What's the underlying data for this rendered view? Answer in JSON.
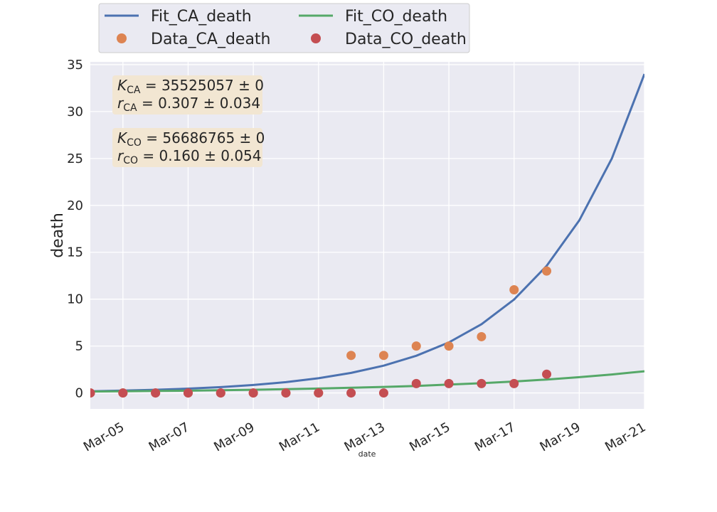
{
  "chart_data": {
    "type": "line",
    "xlabel": "date",
    "ylabel": "death",
    "x_range": [
      "2020-03-04",
      "2020-03-21"
    ],
    "ylim": [
      -1.7,
      35.3
    ],
    "grid": true,
    "legend_placement": "top, above plot, 2 columns",
    "x_ticks": [
      {
        "date": "2020-03-05",
        "label": "Mar-05"
      },
      {
        "date": "2020-03-07",
        "label": "Mar-07"
      },
      {
        "date": "2020-03-09",
        "label": "Mar-09"
      },
      {
        "date": "2020-03-11",
        "label": "Mar-11"
      },
      {
        "date": "2020-03-13",
        "label": "Mar-13"
      },
      {
        "date": "2020-03-15",
        "label": "Mar-15"
      },
      {
        "date": "2020-03-17",
        "label": "Mar-17"
      },
      {
        "date": "2020-03-19",
        "label": "Mar-19"
      },
      {
        "date": "2020-03-21",
        "label": "Mar-21"
      }
    ],
    "y_ticks": [
      0,
      5,
      10,
      15,
      20,
      25,
      30,
      35
    ],
    "series": [
      {
        "name": "Fit_CA_death",
        "kind": "line",
        "color": "#4c72b0",
        "points": [
          [
            "2020-03-04",
            0.18
          ],
          [
            "2020-03-05",
            0.25
          ],
          [
            "2020-03-06",
            0.34
          ],
          [
            "2020-03-07",
            0.46
          ],
          [
            "2020-03-08",
            0.62
          ],
          [
            "2020-03-09",
            0.85
          ],
          [
            "2020-03-10",
            1.15
          ],
          [
            "2020-03-11",
            1.57
          ],
          [
            "2020-03-12",
            2.14
          ],
          [
            "2020-03-13",
            2.91
          ],
          [
            "2020-03-14",
            3.96
          ],
          [
            "2020-03-15",
            5.39
          ],
          [
            "2020-03-16",
            7.33
          ],
          [
            "2020-03-17",
            9.96
          ],
          [
            "2020-03-18",
            13.55
          ],
          [
            "2020-03-19",
            18.4
          ],
          [
            "2020-03-20",
            25.0
          ],
          [
            "2020-03-21",
            34.0
          ]
        ]
      },
      {
        "name": "Fit_CO_death",
        "kind": "line",
        "color": "#55a868",
        "points": [
          [
            "2020-03-04",
            0.15
          ],
          [
            "2020-03-05",
            0.18
          ],
          [
            "2020-03-06",
            0.21
          ],
          [
            "2020-03-07",
            0.24
          ],
          [
            "2020-03-08",
            0.29
          ],
          [
            "2020-03-09",
            0.34
          ],
          [
            "2020-03-10",
            0.4
          ],
          [
            "2020-03-11",
            0.47
          ],
          [
            "2020-03-12",
            0.55
          ],
          [
            "2020-03-13",
            0.64
          ],
          [
            "2020-03-14",
            0.75
          ],
          [
            "2020-03-15",
            0.89
          ],
          [
            "2020-03-16",
            1.04
          ],
          [
            "2020-03-17",
            1.22
          ],
          [
            "2020-03-18",
            1.43
          ],
          [
            "2020-03-19",
            1.68
          ],
          [
            "2020-03-20",
            1.97
          ],
          [
            "2020-03-21",
            2.31
          ]
        ]
      },
      {
        "name": "Data_CA_death",
        "kind": "scatter",
        "color": "#dd8452",
        "points": [
          [
            "2020-03-04",
            0
          ],
          [
            "2020-03-05",
            0
          ],
          [
            "2020-03-06",
            0
          ],
          [
            "2020-03-07",
            0
          ],
          [
            "2020-03-08",
            0
          ],
          [
            "2020-03-09",
            0
          ],
          [
            "2020-03-10",
            0
          ],
          [
            "2020-03-11",
            0
          ],
          [
            "2020-03-12",
            4
          ],
          [
            "2020-03-13",
            4
          ],
          [
            "2020-03-14",
            5
          ],
          [
            "2020-03-15",
            5
          ],
          [
            "2020-03-16",
            6
          ],
          [
            "2020-03-17",
            11
          ],
          [
            "2020-03-18",
            13
          ]
        ]
      },
      {
        "name": "Data_CO_death",
        "kind": "scatter",
        "color": "#c44e52",
        "points": [
          [
            "2020-03-04",
            0
          ],
          [
            "2020-03-05",
            0
          ],
          [
            "2020-03-06",
            0
          ],
          [
            "2020-03-07",
            0
          ],
          [
            "2020-03-08",
            0
          ],
          [
            "2020-03-09",
            0
          ],
          [
            "2020-03-10",
            0
          ],
          [
            "2020-03-11",
            0
          ],
          [
            "2020-03-12",
            0
          ],
          [
            "2020-03-13",
            0
          ],
          [
            "2020-03-14",
            1
          ],
          [
            "2020-03-15",
            1
          ],
          [
            "2020-03-16",
            1
          ],
          [
            "2020-03-17",
            1
          ],
          [
            "2020-03-18",
            2
          ]
        ]
      }
    ],
    "annotations": [
      {
        "lines": [
          {
            "var": "K",
            "sub": "CA",
            "rest": " = 35525057 ± 0"
          },
          {
            "var": "r",
            "sub": "CA",
            "rest": " = 0.307 ± 0.034"
          }
        ]
      },
      {
        "lines": [
          {
            "var": "K",
            "sub": "CO",
            "rest": " = 56686765 ± 0"
          },
          {
            "var": "r",
            "sub": "CO",
            "rest": " = 0.160 ± 0.054"
          }
        ]
      }
    ],
    "colors": {
      "plot_background": "#eaeaf2",
      "grid": "#ffffff",
      "annotation_box": "#f2e6d2"
    }
  }
}
